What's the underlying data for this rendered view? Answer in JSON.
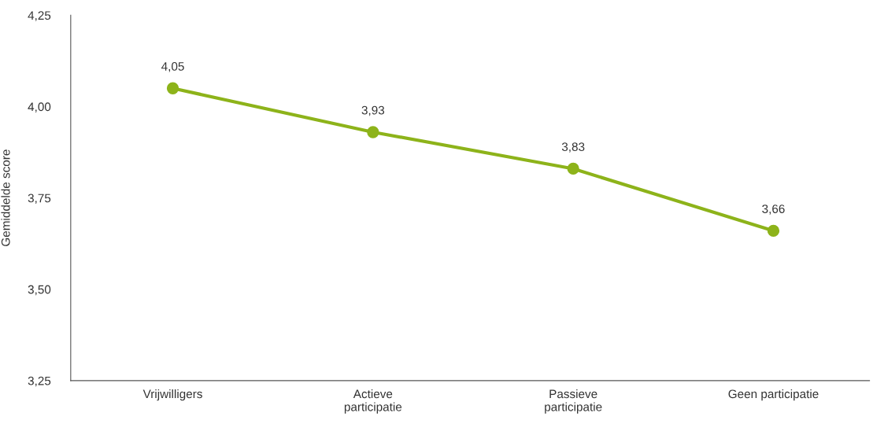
{
  "chart_data": {
    "type": "line",
    "ylabel": "Gemiddelde score",
    "categories": [
      "Vrijwilligers",
      "Actieve\nparticipatie",
      "Passieve\nparticipatie",
      "Geen participatie"
    ],
    "series": [
      {
        "color": "#8db31a",
        "values": [
          4.05,
          3.93,
          3.83,
          3.66
        ],
        "value_labels": [
          "4,05",
          "3,93",
          "3,83",
          "3,66"
        ]
      }
    ],
    "ylim": [
      3.25,
      4.25
    ],
    "yticks": [
      {
        "value": 3.25,
        "label": "3,25"
      },
      {
        "value": 3.5,
        "label": "3,50"
      },
      {
        "value": 3.75,
        "label": "3,75"
      },
      {
        "value": 4.0,
        "label": "4,00"
      },
      {
        "value": 4.25,
        "label": "4,25"
      }
    ],
    "marker": "circle",
    "line_style": "solid",
    "grid": false,
    "legend": false
  }
}
